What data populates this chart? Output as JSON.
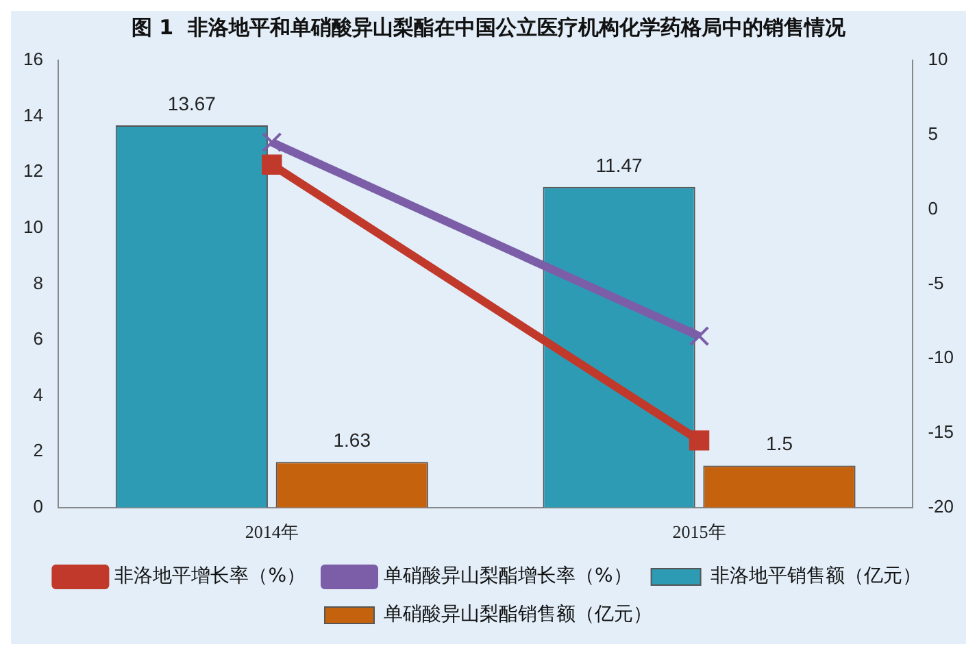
{
  "chart_data": {
    "type": "bar",
    "title": "图 1  非洛地平和单硝酸异山梨酯在中国公立医疗机构化学药格局中的销售情况",
    "categories": [
      "2014年",
      "2015年"
    ],
    "series": [
      {
        "name": "非洛地平销售额（亿元）",
        "color": "#2e9bb5",
        "values": [
          13.67,
          11.47
        ],
        "value_labels": [
          "13.67",
          "11.47"
        ]
      },
      {
        "name": "单硝酸异山梨酯销售额（亿元）",
        "color": "#c5620e",
        "values": [
          1.63,
          1.5
        ],
        "value_labels": [
          "1.63",
          "1.5"
        ]
      },
      {
        "name": "非洛地平增长率（%）",
        "type": "line",
        "axis": "y2",
        "color": "#c0392b",
        "marker": "square",
        "values": [
          3,
          -15.5
        ]
      },
      {
        "name": "单硝酸异山梨酯增长率（%）",
        "type": "line",
        "axis": "y2",
        "color": "#7b5ea7",
        "marker": "cross",
        "values": [
          4.5,
          -8.5
        ]
      }
    ],
    "ylim": [
      0,
      16
    ],
    "yticks": [
      0,
      2,
      4,
      6,
      8,
      10,
      12,
      14,
      16
    ],
    "y2lim": [
      -20,
      10
    ],
    "y2ticks": [
      -20,
      -15,
      -10,
      -5,
      0,
      5,
      10
    ],
    "grid": false,
    "legend": "bottom"
  }
}
